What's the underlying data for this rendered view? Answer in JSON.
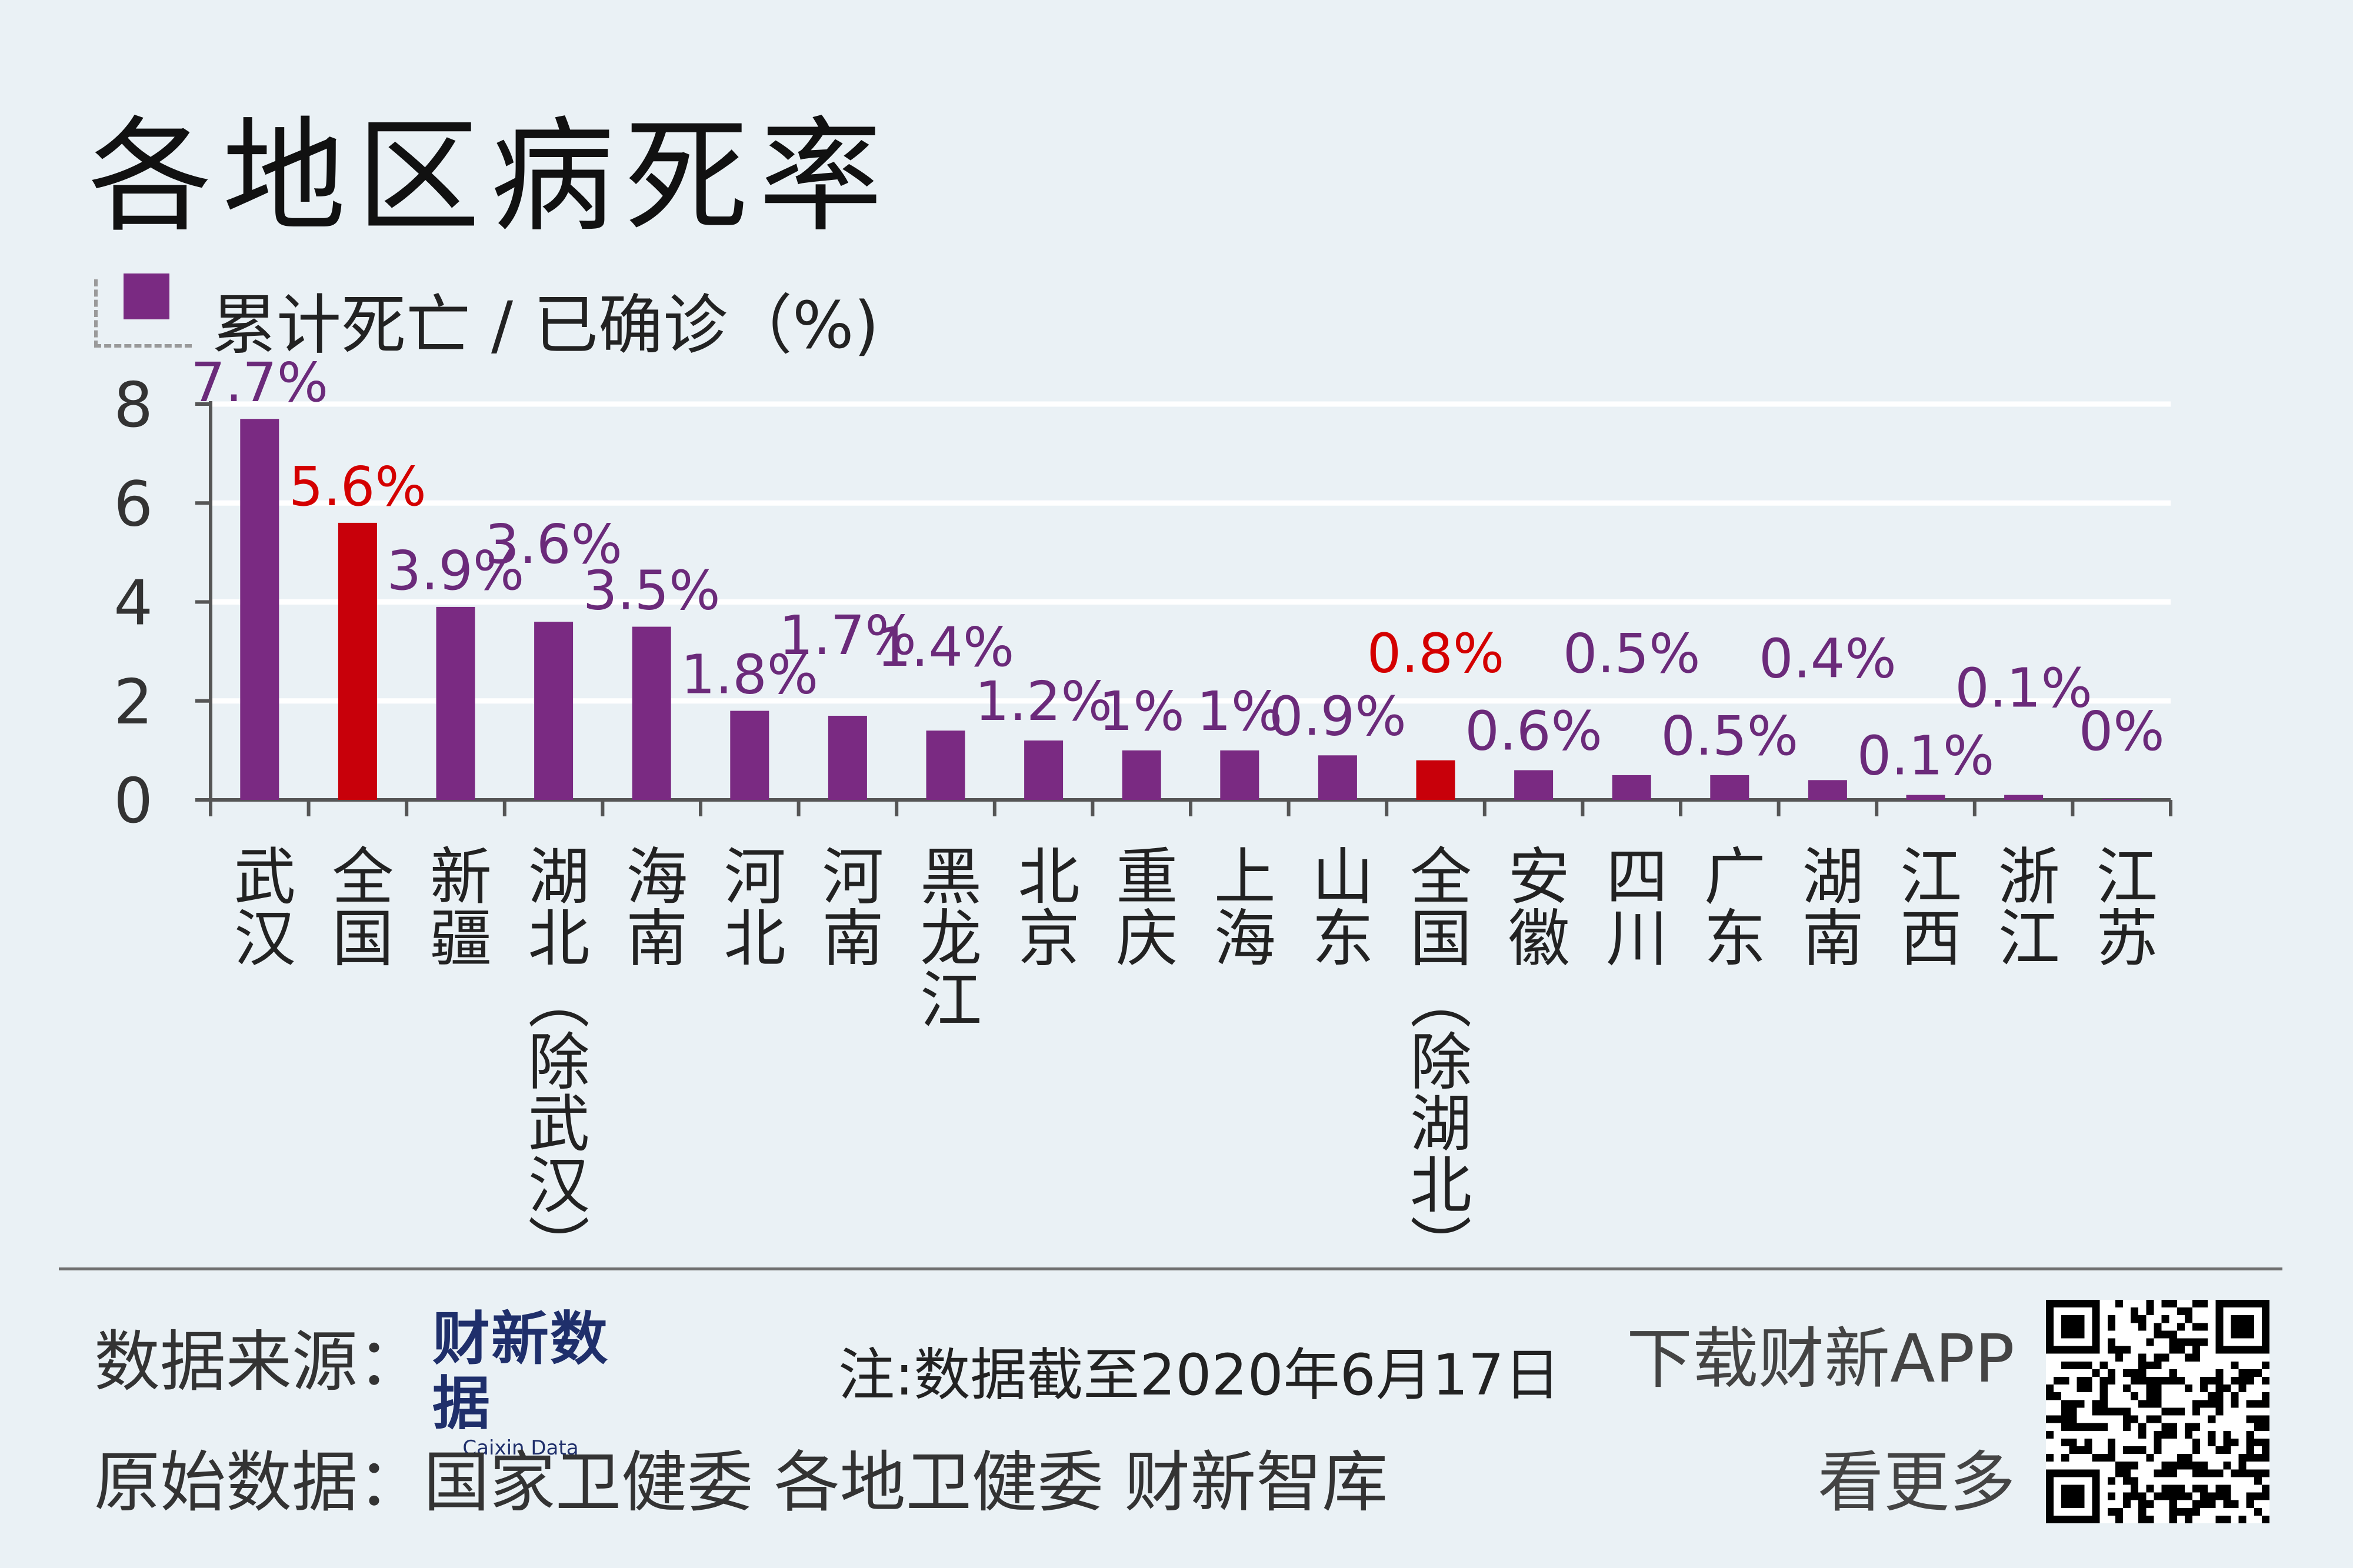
{
  "title": "各地区病死率",
  "legend": {
    "label": "累计死亡 / 已确诊（%)",
    "color": "#7a2a82"
  },
  "footer": {
    "source_label": "数据来源：",
    "logo_main": "财新数据",
    "logo_sub": "Caixin Data",
    "note": "注:数据截至2020年6月17日",
    "original_source": "原始数据：国家卫健委 各地卫健委 财新智库",
    "app": "下载财新APP",
    "more": "看更多"
  },
  "chart_data": {
    "type": "bar",
    "title": "各地区病死率",
    "ylabel": "累计死亡 / 已确诊（%)",
    "ylim": [
      0,
      8
    ],
    "yticks": [
      0,
      2,
      4,
      6,
      8
    ],
    "grid": true,
    "categories": [
      "武汉",
      "全国",
      "新疆",
      "湖北（除武汉）",
      "海南",
      "河北",
      "河南",
      "黑龙江",
      "北京",
      "重庆",
      "上海",
      "山东",
      "全国（除湖北）",
      "安徽",
      "四川",
      "广东",
      "湖南",
      "江西",
      "浙江",
      "江苏"
    ],
    "values": [
      7.7,
      5.6,
      3.9,
      3.6,
      3.5,
      1.8,
      1.7,
      1.4,
      1.2,
      1,
      1,
      0.9,
      0.8,
      0.6,
      0.5,
      0.5,
      0.4,
      0.1,
      0.1,
      0
    ],
    "labels": [
      "7.7%",
      "5.6%",
      "3.9%",
      "3.6%",
      "3.5%",
      "1.8%",
      "1.7%",
      "1.4%",
      "1.2%",
      "1%",
      "1%",
      "0.9%",
      "0.8%",
      "0.6%",
      "0.5%",
      "0.5%",
      "0.4%",
      "0.1%",
      "0.1%",
      "0%"
    ],
    "highlight": [
      false,
      true,
      false,
      false,
      false,
      false,
      false,
      false,
      false,
      false,
      false,
      false,
      true,
      false,
      false,
      false,
      false,
      false,
      false,
      false
    ],
    "colors": {
      "bar": "#7a2a82",
      "highlight": "#c8000a",
      "label": "#6b2a7a",
      "highlight_label": "#d40000",
      "axis": "#555555",
      "grid": "#ffffff"
    }
  }
}
